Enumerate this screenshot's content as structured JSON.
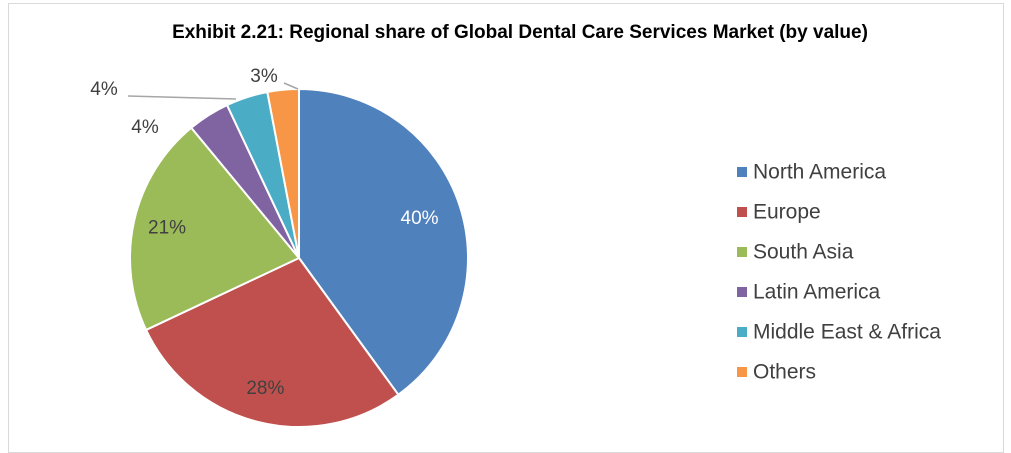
{
  "chart_data": {
    "type": "pie",
    "title": "Exhibit 2.21: Regional share of Global Dental Care Services Market (by value)",
    "categories": [
      "North America",
      "Europe",
      "South Asia",
      "Latin America",
      "Middle East & Africa",
      "Others"
    ],
    "values": [
      40,
      28,
      21,
      4,
      4,
      3
    ],
    "value_labels": [
      "40%",
      "28%",
      "21%",
      "4%",
      "4%",
      "3%"
    ],
    "colors": [
      "#4f81bd",
      "#c0504d",
      "#9bbb59",
      "#8064a2",
      "#4bacc6",
      "#f79646"
    ],
    "legend": "right"
  }
}
